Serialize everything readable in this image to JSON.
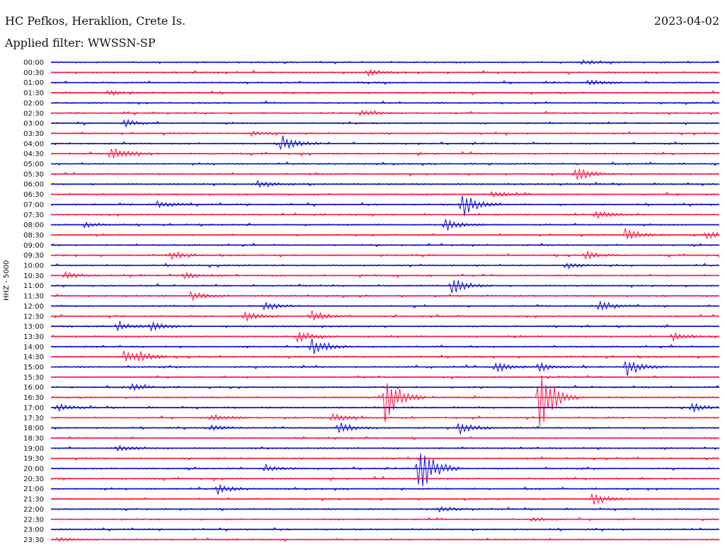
{
  "header": {
    "station": "HC Pefkos, Heraklion, Crete Is.",
    "date": "2023-04-02",
    "filter": "Applied filter: WWSSN-SP"
  },
  "chart_data": {
    "type": "line",
    "subtype": "helicorder",
    "ylabel": "HHZ - 5000",
    "colors": [
      "#1010d0",
      "#ff1748"
    ],
    "rows": [
      "00:00",
      "00:30",
      "01:00",
      "01:30",
      "02:00",
      "02:30",
      "03:00",
      "03:30",
      "04:00",
      "04:30",
      "05:00",
      "05:30",
      "06:00",
      "06:30",
      "07:00",
      "07:30",
      "08:00",
      "08:30",
      "09:00",
      "09:30",
      "10:00",
      "10:30",
      "11:00",
      "11:30",
      "12:00",
      "12:30",
      "13:00",
      "13:30",
      "14:00",
      "14:30",
      "15:00",
      "15:30",
      "16:00",
      "16:30",
      "17:00",
      "17:30",
      "18:00",
      "18:30",
      "19:00",
      "19:30",
      "20:00",
      "20:30",
      "21:00",
      "21:30",
      "22:00",
      "22:30",
      "23:00",
      "23:30"
    ],
    "events": [
      {
        "row": "00:00",
        "t": 0.795,
        "amp": 4
      },
      {
        "row": "00:30",
        "t": 0.475,
        "amp": 5
      },
      {
        "row": "01:00",
        "t": 0.805,
        "amp": 4
      },
      {
        "row": "01:30",
        "t": 0.085,
        "amp": 3
      },
      {
        "row": "02:30",
        "t": 0.465,
        "amp": 4
      },
      {
        "row": "03:00",
        "t": 0.11,
        "amp": 5
      },
      {
        "row": "03:30",
        "t": 0.3,
        "amp": 3
      },
      {
        "row": "04:00",
        "t": 0.345,
        "amp": 11
      },
      {
        "row": "04:30",
        "t": 0.09,
        "amp": 12
      },
      {
        "row": "05:30",
        "t": 0.785,
        "amp": 11
      },
      {
        "row": "06:00",
        "t": 0.31,
        "amp": 5
      },
      {
        "row": "06:30",
        "t": 0.66,
        "amp": 5
      },
      {
        "row": "07:00",
        "t": 0.615,
        "amp": 20
      },
      {
        "row": "07:00",
        "t": 0.16,
        "amp": 5
      },
      {
        "row": "07:30",
        "t": 0.815,
        "amp": 6
      },
      {
        "row": "08:00",
        "t": 0.59,
        "amp": 9
      },
      {
        "row": "08:00",
        "t": 0.05,
        "amp": 4
      },
      {
        "row": "08:30",
        "t": 0.86,
        "amp": 10
      },
      {
        "row": "08:30",
        "t": 0.98,
        "amp": 6
      },
      {
        "row": "09:30",
        "t": 0.18,
        "amp": 6
      },
      {
        "row": "09:30",
        "t": 0.8,
        "amp": 6
      },
      {
        "row": "10:00",
        "t": 0.77,
        "amp": 5
      },
      {
        "row": "10:30",
        "t": 0.02,
        "amp": 5
      },
      {
        "row": "10:30",
        "t": 0.2,
        "amp": 5
      },
      {
        "row": "11:00",
        "t": 0.6,
        "amp": 12
      },
      {
        "row": "11:30",
        "t": 0.21,
        "amp": 6
      },
      {
        "row": "12:00",
        "t": 0.32,
        "amp": 5
      },
      {
        "row": "12:00",
        "t": 0.82,
        "amp": 6
      },
      {
        "row": "12:30",
        "t": 0.29,
        "amp": 8
      },
      {
        "row": "12:30",
        "t": 0.39,
        "amp": 8
      },
      {
        "row": "13:00",
        "t": 0.1,
        "amp": 6
      },
      {
        "row": "13:00",
        "t": 0.15,
        "amp": 6
      },
      {
        "row": "13:30",
        "t": 0.37,
        "amp": 9
      },
      {
        "row": "13:30",
        "t": 0.93,
        "amp": 7
      },
      {
        "row": "14:00",
        "t": 0.39,
        "amp": 13
      },
      {
        "row": "14:30",
        "t": 0.11,
        "amp": 7
      },
      {
        "row": "14:30",
        "t": 0.13,
        "amp": 7
      },
      {
        "row": "15:00",
        "t": 0.665,
        "amp": 8
      },
      {
        "row": "15:00",
        "t": 0.86,
        "amp": 12
      },
      {
        "row": "15:00",
        "t": 0.73,
        "amp": 6
      },
      {
        "row": "16:00",
        "t": 0.12,
        "amp": 5
      },
      {
        "row": "16:30",
        "t": 0.5,
        "amp": 36
      },
      {
        "row": "16:30",
        "t": 0.73,
        "amp": 52
      },
      {
        "row": "17:00",
        "t": 0.01,
        "amp": 5
      },
      {
        "row": "17:00",
        "t": 0.96,
        "amp": 6
      },
      {
        "row": "17:30",
        "t": 0.24,
        "amp": 6
      },
      {
        "row": "17:30",
        "t": 0.42,
        "amp": 6
      },
      {
        "row": "18:00",
        "t": 0.43,
        "amp": 9
      },
      {
        "row": "18:00",
        "t": 0.61,
        "amp": 9
      },
      {
        "row": "18:00",
        "t": 0.24,
        "amp": 4
      },
      {
        "row": "19:00",
        "t": 0.1,
        "amp": 4
      },
      {
        "row": "20:00",
        "t": 0.55,
        "amp": 42
      },
      {
        "row": "20:00",
        "t": 0.32,
        "amp": 5
      },
      {
        "row": "21:00",
        "t": 0.25,
        "amp": 7
      },
      {
        "row": "21:30",
        "t": 0.81,
        "amp": 10
      },
      {
        "row": "22:00",
        "t": 0.58,
        "amp": 4
      },
      {
        "row": "22:30",
        "t": 0.72,
        "amp": 4
      },
      {
        "row": "23:30",
        "t": 0.01,
        "amp": 3
      }
    ]
  }
}
